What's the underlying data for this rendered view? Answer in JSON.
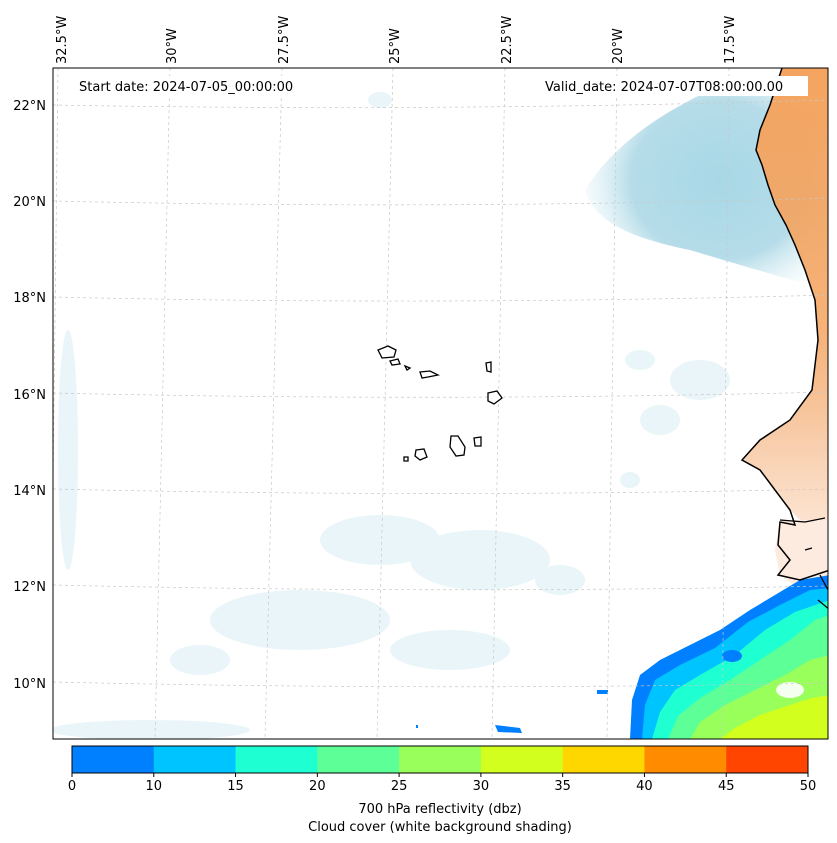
{
  "map": {
    "start_date": "Start date: 2024-07-05_00:00:00",
    "valid_date": "Valid_date: 2024-07-07T08:00:00.00",
    "lon_labels": [
      "32.5°W",
      "30°W",
      "27.5°W",
      "25°W",
      "22.5°W",
      "20°W",
      "17.5°W"
    ],
    "lat_labels": [
      "22°N",
      "20°N",
      "18°N",
      "16°N",
      "14°N",
      "12°N",
      "10°N"
    ]
  },
  "colorbar": {
    "ticks": [
      "0",
      "10",
      "15",
      "20",
      "25",
      "30",
      "35",
      "40",
      "45",
      "50"
    ],
    "colors": [
      "#0080ff",
      "#00c4ff",
      "#1effd2",
      "#5dff97",
      "#99ff5b",
      "#d3ff1f",
      "#ffd700",
      "#ff8c00",
      "#ff4500"
    ],
    "label_line1": "700 hPa reflectivity (dbz)",
    "label_line2": "Cloud cover (white background shading)"
  },
  "colors": {
    "land": "#f4a460",
    "cloud": "#a8d8e6",
    "coastline": "#000000",
    "gridline": "#c8c8c8"
  }
}
